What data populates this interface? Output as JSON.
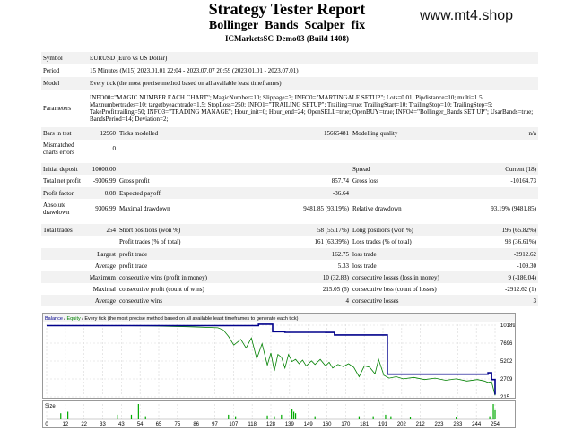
{
  "header": {
    "title": "Strategy Tester Report",
    "subtitle": "Bollinger_Bands_Scalper_fix",
    "build": "ICMarketsSC-Demo03 (Build 1408)",
    "site": "www.mt4.shop"
  },
  "info": {
    "symbol_label": "Symbol",
    "symbol": "EURUSD (Euro vs US Dollar)",
    "period_label": "Period",
    "period": "15 Minutes (M15) 2023.01.01 22:04 - 2023.07.07 20:59 (2023.01.01 - 2023.07.01)",
    "model_label": "Model",
    "model": "Every tick (the most precise method based on all available least timeframes)",
    "parameters_label": "Parameters",
    "parameters": "INFO00=\"MAGIC NUMBER EACH CHART\"; MagicNumber=10; Slippage=3; INFO0=\"MARTINGALE SETUP\"; Lots=0.01; Pipdistance=10; multi=1.5; Maxnumbertrades=10; targetbyeachtrade=1.5; StopLoss=250; INFO1=\"TRAILING SETUP\"; Trailing=true; TrailingStart=10; TrailingStop=10; TrailingStep=5; TakeProfittrailing=50; INFO3=\"TRADING MANAGE\"; Hour_init=0; Hour_end=24; OpenSELL=true; OpenBUY=true; INFO4=\"Bollinger_Bands SET UP\"; UsarBands=true; BandsPeriod=14; Deviation=2;"
  },
  "rows": {
    "bars_label": "Bars in test",
    "bars": "12960",
    "ticks_label": "Ticks modelled",
    "ticks": "15665481",
    "quality_label": "Modelling quality",
    "quality": "n/a",
    "mismatch_label": "Mismatched charts errors",
    "mismatch": "0",
    "deposit_label": "Initial deposit",
    "deposit": "10000.00",
    "spread_label": "Spread",
    "spread": "Current (18)",
    "netprofit_label": "Total net profit",
    "netprofit": "-9306.99",
    "grossprofit_label": "Gross profit",
    "grossprofit": "857.74",
    "grossloss_label": "Gross loss",
    "grossloss": "-10164.73",
    "pf_label": "Profit factor",
    "pf": "0.08",
    "payoff_label": "Expected payoff",
    "payoff": "-36.64",
    "absdd_label": "Absolute drawdown",
    "absdd": "9306.99",
    "maxdd_label": "Maximal drawdown",
    "maxdd": "9481.85 (93.19%)",
    "reldd_label": "Relative drawdown",
    "reldd": "93.19% (9481.85)",
    "trades_label": "Total trades",
    "trades": "254",
    "short_label": "Short positions (won %)",
    "short": "58 (55.17%)",
    "long_label": "Long positions (won %)",
    "long": "196 (65.82%)",
    "pt_label": "Profit trades (% of total)",
    "pt": "161 (63.39%)",
    "lt_label": "Loss trades (% of total)",
    "lt": "93 (36.61%)",
    "largest_label": "Largest",
    "lp_label": "profit trade",
    "lp": "162.75",
    "ll_label": "loss trade",
    "ll": "-2912.62",
    "average_label": "Average",
    "ap_label": "profit trade",
    "ap": "5.33",
    "al_label": "loss trade",
    "al": "-109.30",
    "maximum_label": "Maximum",
    "mcw_label": "consecutive wins (profit in money)",
    "mcw": "10 (32.83)",
    "mcl_label": "consecutive losses (loss in money)",
    "mcl": "9 (-186.04)",
    "maximal_label": "Maximal",
    "mcp_label": "consecutive profit (count of wins)",
    "mcp": "215.05 (6)",
    "mclo_label": "consecutive loss (count of losses)",
    "mclo": "-2912.62 (1)",
    "average2_label": "Average",
    "acw_label": "consecutive wins",
    "acw": "4",
    "acl_label": "consecutive losses",
    "acl": "3"
  },
  "balance_chart": {
    "legend_balance": "Balance",
    "legend_sep": " / ",
    "legend_equity": "Equity",
    "legend_rest": " / Every tick (the most precise method based on all available least timeframes to generate each tick)",
    "balance_color": "#00008b",
    "equity_color": "#008000"
  },
  "size_chart": {
    "label": "Size",
    "bar_color": "#00aa00"
  },
  "chart_data": {
    "type": "line",
    "x_ticks": [
      "0",
      "12",
      "22",
      "33",
      "43",
      "54",
      "65",
      "75",
      "86",
      "97",
      "107",
      "118",
      "128",
      "139",
      "149",
      "160",
      "170",
      "181",
      "191",
      "202",
      "212",
      "223",
      "233",
      "244",
      "254"
    ],
    "y_ticks": [
      "10189",
      "7696",
      "5202",
      "2709",
      "215"
    ],
    "ylim": [
      215,
      10189
    ],
    "xlim": [
      0,
      254
    ],
    "series": [
      {
        "name": "Balance",
        "x": [
          0,
          120,
          128,
          135,
          158,
          163,
          188,
          193,
          250,
          252,
          254
        ],
        "y": [
          10000,
          10200,
          9150,
          9070,
          9050,
          8700,
          8700,
          3250,
          3450,
          2500,
          400
        ]
      },
      {
        "name": "Equity",
        "x": [
          0,
          40,
          60,
          80,
          97,
          100,
          103,
          106,
          110,
          113,
          116,
          119,
          122,
          125,
          127,
          129,
          131,
          133,
          135,
          137,
          139,
          141,
          143,
          145,
          147,
          150,
          152,
          155,
          158,
          160,
          162,
          165,
          168,
          171,
          174,
          177,
          180,
          183,
          186,
          188,
          191,
          194,
          198,
          202,
          208,
          214,
          220,
          226,
          232,
          238,
          244,
          248,
          250,
          252,
          254
        ],
        "y": [
          10000,
          10000,
          9950,
          9850,
          9700,
          9400,
          8500,
          7300,
          8100,
          6900,
          8300,
          5400,
          7500,
          4500,
          6200,
          3700,
          6000,
          5600,
          4100,
          6000,
          5000,
          5300,
          4700,
          5200,
          4400,
          5100,
          4600,
          5300,
          4400,
          4900,
          4100,
          4600,
          4300,
          4700,
          4200,
          2900,
          4400,
          4200,
          3300,
          5300,
          3100,
          2700,
          2900,
          2600,
          2800,
          2500,
          2700,
          2400,
          2600,
          2300,
          2500,
          2300,
          2100,
          2200,
          300
        ]
      }
    ],
    "size_bars": [
      {
        "x": 8,
        "v": 0.4
      },
      {
        "x": 12,
        "v": 0.5
      },
      {
        "x": 40,
        "v": 0.3
      },
      {
        "x": 48,
        "v": 0.3
      },
      {
        "x": 52,
        "v": 1.0
      },
      {
        "x": 56,
        "v": 0.2
      },
      {
        "x": 103,
        "v": 0.3
      },
      {
        "x": 107,
        "v": 0.2
      },
      {
        "x": 125,
        "v": 0.25
      },
      {
        "x": 129,
        "v": 0.2
      },
      {
        "x": 133,
        "v": 0.3
      },
      {
        "x": 139,
        "v": 0.7
      },
      {
        "x": 140,
        "v": 0.5
      },
      {
        "x": 141,
        "v": 0.4
      },
      {
        "x": 152,
        "v": 0.2
      },
      {
        "x": 177,
        "v": 0.2
      },
      {
        "x": 185,
        "v": 0.2
      },
      {
        "x": 192,
        "v": 0.3
      },
      {
        "x": 195,
        "v": 0.2
      },
      {
        "x": 206,
        "v": 0.15
      },
      {
        "x": 232,
        "v": 0.15
      },
      {
        "x": 251,
        "v": 0.2
      },
      {
        "x": 253,
        "v": 1.0
      },
      {
        "x": 254,
        "v": 0.6
      }
    ]
  }
}
